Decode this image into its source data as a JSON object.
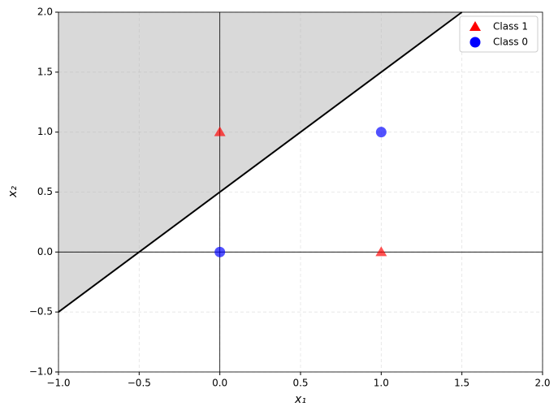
{
  "chart_data": {
    "type": "scatter",
    "xlabel": "x₁",
    "ylabel": "x₂",
    "xlim": [
      -1,
      2
    ],
    "ylim": [
      -1,
      2
    ],
    "xticks": [
      {
        "value": -1,
        "label": "−1.0"
      },
      {
        "value": -0.5,
        "label": "−0.5"
      },
      {
        "value": 0,
        "label": "0.0"
      },
      0.5,
      {
        "value": 1,
        "label": "1.0"
      },
      1.5,
      {
        "value": 2,
        "label": "2.0"
      }
    ],
    "yticks": [
      {
        "value": -1,
        "label": "−1.0"
      },
      {
        "value": -0.5,
        "label": "−0.5"
      },
      {
        "value": 0,
        "label": "0.0"
      },
      0.5,
      {
        "value": 1,
        "label": "1.0"
      },
      1.5,
      {
        "value": 2,
        "label": "2.0"
      }
    ],
    "grid": true,
    "legend": "upper right",
    "axhline": 0,
    "axvline": 0,
    "series": [
      {
        "name": "Class 1",
        "color": "#ff0000",
        "marker": "triangle",
        "x": [
          0,
          1
        ],
        "values": [
          1,
          0
        ]
      },
      {
        "name": "Class 0",
        "color": "#0000ff",
        "marker": "circle",
        "x": [
          0,
          1
        ],
        "values": [
          0,
          1
        ]
      }
    ],
    "boundary": {
      "x": [
        -1,
        1.5
      ],
      "values": [
        -0.5,
        2
      ],
      "color": "#000000",
      "shade_color": "#d9d9d9"
    }
  }
}
